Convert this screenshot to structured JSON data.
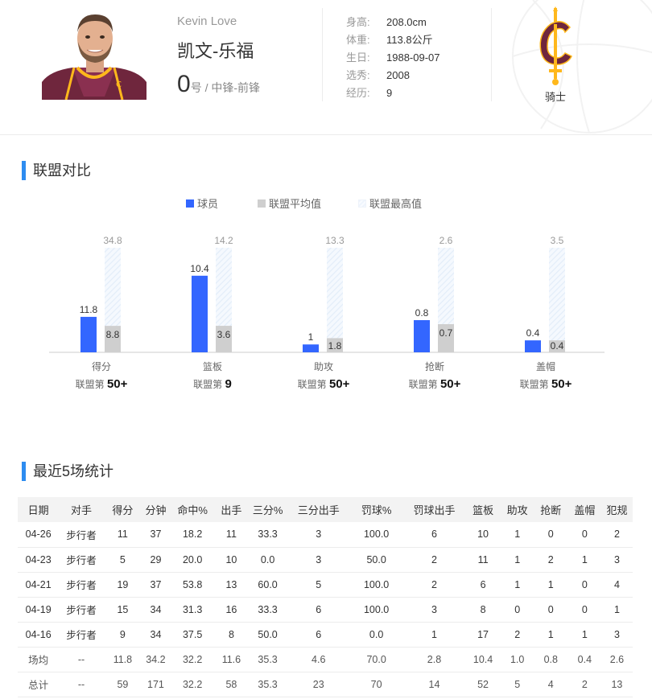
{
  "player": {
    "name_en": "Kevin Love",
    "name_cn": "凯文-乐福",
    "number": "0",
    "number_suffix": "号 / ",
    "position": "中锋-前锋",
    "info": [
      {
        "label": "身高:",
        "value": "208.0cm"
      },
      {
        "label": "体重:",
        "value": "113.8公斤"
      },
      {
        "label": "生日:",
        "value": "1988-09-07"
      },
      {
        "label": "选秀:",
        "value": "2008"
      },
      {
        "label": "经历:",
        "value": "9"
      }
    ],
    "team": "骑士"
  },
  "colors": {
    "accent": "#2d8cf0",
    "player_bar": "#3366ff",
    "avg_bar": "#cfcfcf",
    "max_bar": "#eaf2fc",
    "team_wine": "#6f263d",
    "team_gold": "#ffb81c"
  },
  "league": {
    "title": "联盟对比",
    "legend": [
      "球员",
      "联盟平均值",
      "联盟最高值"
    ],
    "rank_prefix": "联盟第"
  },
  "chart_data": {
    "type": "bar",
    "categories": [
      "得分",
      "篮板",
      "助攻",
      "抢断",
      "盖帽"
    ],
    "series": [
      {
        "name": "球员",
        "values": [
          11.8,
          10.4,
          1.0,
          0.8,
          0.4
        ]
      },
      {
        "name": "联盟平均值",
        "values": [
          8.8,
          3.6,
          1.8,
          0.7,
          0.4
        ]
      },
      {
        "name": "联盟最高值",
        "values": [
          34.8,
          14.2,
          13.3,
          2.6,
          3.5
        ]
      }
    ],
    "ranks": [
      "50+",
      "9",
      "50+",
      "50+",
      "50+"
    ],
    "title": "",
    "xlabel": "",
    "ylabel": "",
    "legend_position": "top-center",
    "grid": false
  },
  "recent": {
    "title": "最近5场统计",
    "columns": [
      "日期",
      "对手",
      "得分",
      "分钟",
      "命中%",
      "出手",
      "三分%",
      "三分出手",
      "罚球%",
      "罚球出手",
      "篮板",
      "助攻",
      "抢断",
      "盖帽",
      "犯规"
    ],
    "rows": [
      [
        "04-26",
        "步行者",
        "11",
        "37",
        "18.2",
        "11",
        "33.3",
        "3",
        "100.0",
        "6",
        "10",
        "1",
        "0",
        "0",
        "2"
      ],
      [
        "04-23",
        "步行者",
        "5",
        "29",
        "20.0",
        "10",
        "0.0",
        "3",
        "50.0",
        "2",
        "11",
        "1",
        "2",
        "1",
        "3"
      ],
      [
        "04-21",
        "步行者",
        "19",
        "37",
        "53.8",
        "13",
        "60.0",
        "5",
        "100.0",
        "2",
        "6",
        "1",
        "1",
        "0",
        "4"
      ],
      [
        "04-19",
        "步行者",
        "15",
        "34",
        "31.3",
        "16",
        "33.3",
        "6",
        "100.0",
        "3",
        "8",
        "0",
        "0",
        "0",
        "1"
      ],
      [
        "04-16",
        "步行者",
        "9",
        "34",
        "37.5",
        "8",
        "50.0",
        "6",
        "0.0",
        "1",
        "17",
        "2",
        "1",
        "1",
        "3"
      ],
      [
        "场均",
        "--",
        "11.8",
        "34.2",
        "32.2",
        "11.6",
        "35.3",
        "4.6",
        "70.0",
        "2.8",
        "10.4",
        "1.0",
        "0.8",
        "0.4",
        "2.6"
      ],
      [
        "总计",
        "--",
        "59",
        "171",
        "32.2",
        "58",
        "35.3",
        "23",
        "70",
        "14",
        "52",
        "5",
        "4",
        "2",
        "13"
      ]
    ]
  }
}
